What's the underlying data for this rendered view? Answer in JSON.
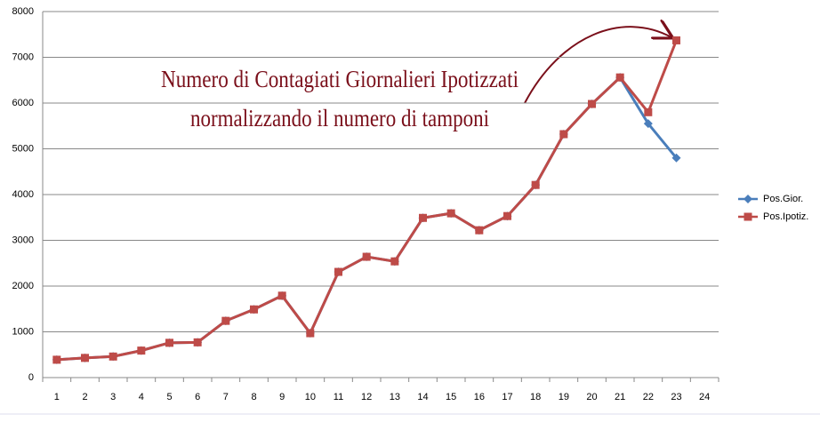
{
  "chart_data": {
    "type": "line",
    "categories": [
      "1",
      "2",
      "3",
      "4",
      "5",
      "6",
      "7",
      "8",
      "9",
      "10",
      "11",
      "12",
      "13",
      "14",
      "15",
      "16",
      "17",
      "18",
      "19",
      "20",
      "21",
      "22",
      "23",
      "24"
    ],
    "series": [
      {
        "name": "Pos.Gior.",
        "color": "#4a7ebb",
        "marker": "diamond",
        "values": [
          390,
          430,
          460,
          590,
          760,
          770,
          1240,
          1490,
          1790,
          970,
          2310,
          2640,
          2540,
          3490,
          3590,
          3220,
          3530,
          4210,
          5320,
          5980,
          6560,
          5550,
          4800,
          null
        ]
      },
      {
        "name": "Pos.Ipotiz.",
        "color": "#be4b48",
        "marker": "square",
        "values": [
          390,
          430,
          460,
          590,
          760,
          770,
          1240,
          1490,
          1790,
          970,
          2310,
          2640,
          2540,
          3490,
          3590,
          3220,
          3530,
          4210,
          5320,
          5980,
          6560,
          5800,
          7370,
          null
        ]
      }
    ],
    "ylim": [
      0,
      8000
    ],
    "yticks": [
      0,
      1000,
      2000,
      3000,
      4000,
      5000,
      6000,
      7000,
      8000
    ],
    "grid": true,
    "legend": "right",
    "annotations": [
      "Numero di Contagiati Giornalieri Ipotizzati",
      "normalizzando il numero di tamponi"
    ]
  }
}
